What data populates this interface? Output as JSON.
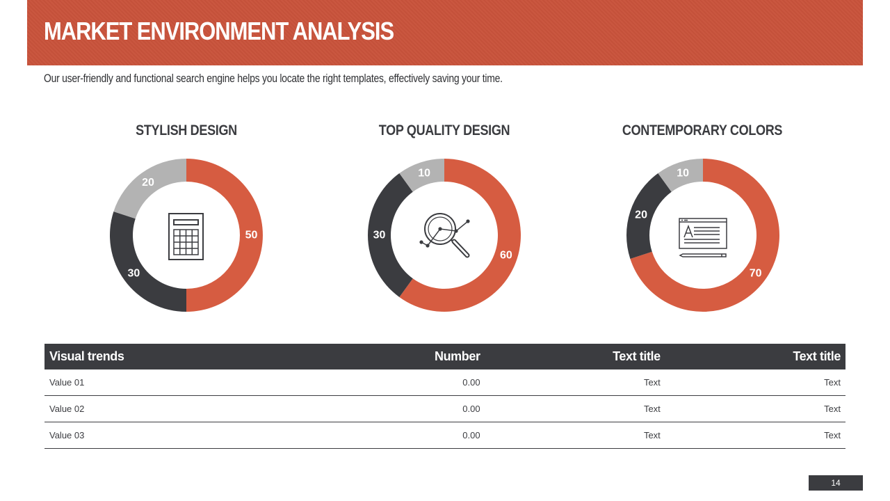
{
  "header": {
    "title": "MARKET ENVIRONMENT ANALYSIS",
    "subtitle": "Our user-friendly and functional search engine helps you locate the right templates, effectively saving your time."
  },
  "colors": {
    "accent": "#d65c41",
    "dark": "#3b3c40",
    "light": "#b3b3b3"
  },
  "chart_data": [
    {
      "type": "pie",
      "title": "STYLISH DESIGN",
      "icon": "calculator-icon",
      "values": [
        50,
        30,
        20
      ],
      "colors": [
        "#d65c41",
        "#3b3c40",
        "#b3b3b3"
      ]
    },
    {
      "type": "pie",
      "title": "TOP QUALITY DESIGN",
      "icon": "magnifier-analytics-icon",
      "values": [
        60,
        30,
        10
      ],
      "colors": [
        "#d65c41",
        "#3b3c40",
        "#b3b3b3"
      ]
    },
    {
      "type": "pie",
      "title": "CONTEMPORARY COLORS",
      "icon": "text-document-pencil-icon",
      "values": [
        70,
        20,
        10
      ],
      "colors": [
        "#d65c41",
        "#3b3c40",
        "#b3b3b3"
      ]
    }
  ],
  "table": {
    "headers": [
      "Visual trends",
      "Number",
      "Text title",
      "Text title"
    ],
    "rows": [
      [
        "Value 01",
        "0.00",
        "Text",
        "Text"
      ],
      [
        "Value 02",
        "0.00",
        "Text",
        "Text"
      ],
      [
        "Value 03",
        "0.00",
        "Text",
        "Text"
      ]
    ]
  },
  "footer": {
    "page_number": "14"
  }
}
